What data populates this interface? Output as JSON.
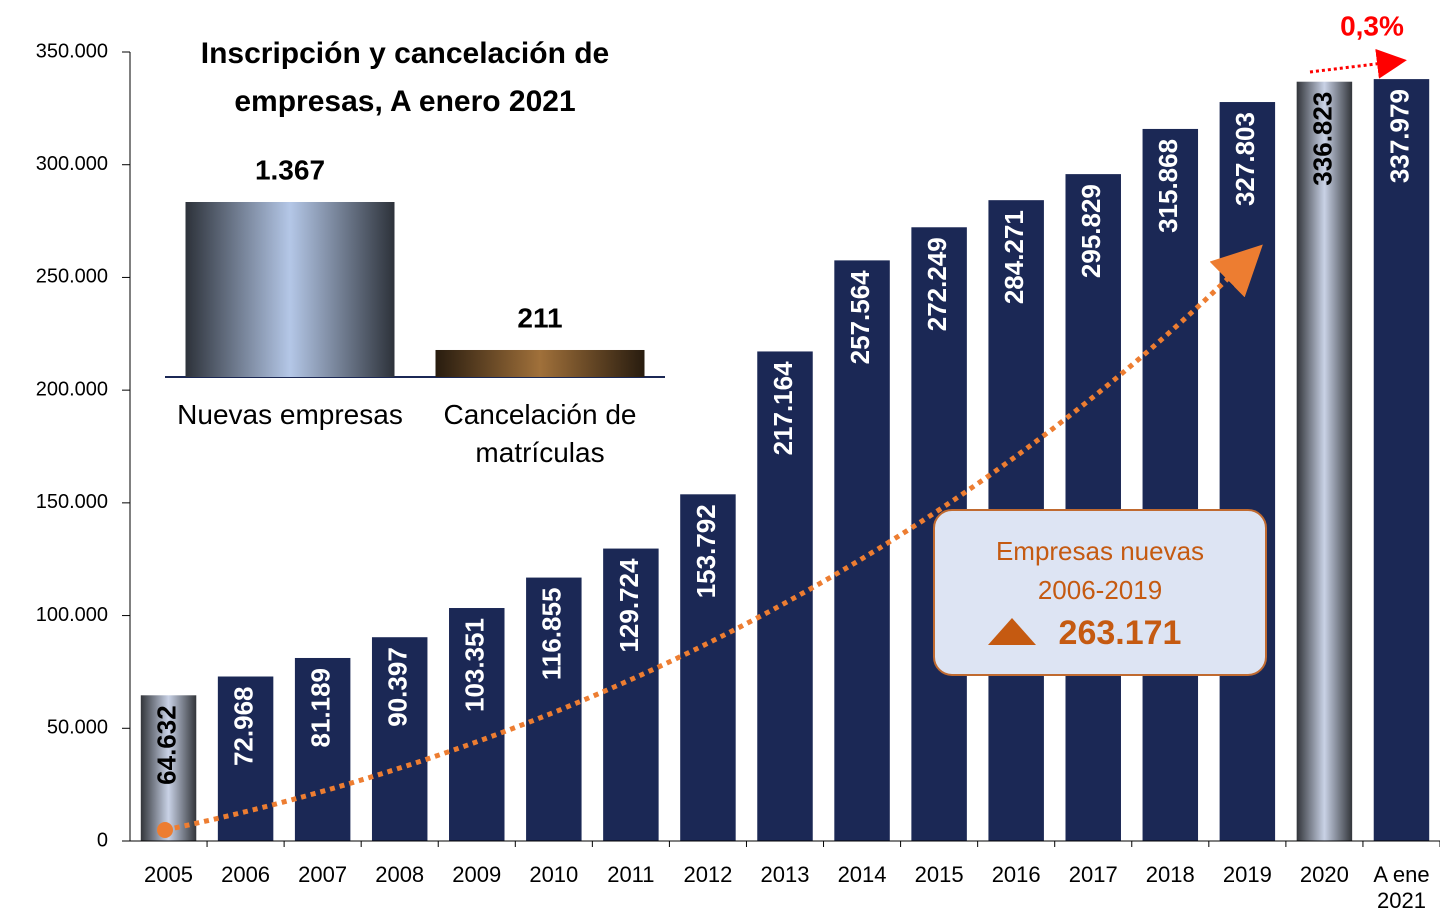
{
  "chart_data": {
    "type": "bar",
    "categories": [
      "2005",
      "2006",
      "2007",
      "2008",
      "2009",
      "2010",
      "2011",
      "2012",
      "2013",
      "2014",
      "2015",
      "2016",
      "2017",
      "2018",
      "2019",
      "2020",
      "A ene 2021"
    ],
    "values": [
      64632,
      72968,
      81189,
      90397,
      103351,
      116855,
      129724,
      153792,
      217164,
      257564,
      272249,
      284271,
      295829,
      315868,
      327803,
      336823,
      337979
    ],
    "value_labels": [
      "64.632",
      "72.968",
      "81.189",
      "90.397",
      "103.351",
      "116.855",
      "129.724",
      "153.792",
      "217.164",
      "257.564",
      "272.249",
      "284.271",
      "295.829",
      "315.868",
      "327.803",
      "336.823",
      "337.979"
    ],
    "colors": [
      "#c9d2e6",
      "#1b2855",
      "#1b2855",
      "#1b2855",
      "#1b2855",
      "#1b2855",
      "#1b2855",
      "#1b2855",
      "#1b2855",
      "#1b2855",
      "#1b2855",
      "#1b2855",
      "#1b2855",
      "#1b2855",
      "#1b2855",
      "#c9d2e6",
      "#1b2855"
    ],
    "ylim": [
      0,
      350000
    ],
    "yticks": [
      0,
      {
        "value": 50000,
        "label": "50.000"
      },
      {
        "value": 100000,
        "label": "100.000"
      },
      {
        "value": 150000,
        "label": "150.000"
      },
      {
        "value": 200000,
        "label": "200.000"
      },
      {
        "value": 250000,
        "label": "250.000"
      },
      {
        "value": 300000,
        "label": "300.000"
      },
      {
        "value": 350000,
        "label": "350.000"
      }
    ],
    "annotations": {
      "growth": "0,3%",
      "box_title": "Empresas nuevas",
      "box_period": "2006-2019",
      "box_value": "263.171"
    },
    "inset": {
      "type": "bar",
      "title": "Inscripción y cancelación de empresas, A enero 2021",
      "categories": [
        "Nuevas empresas",
        "Cancelación de matrículas"
      ],
      "values": [
        1367,
        211
      ],
      "value_labels": [
        "1.367",
        "211"
      ],
      "colors": [
        "#b4c7e7",
        "#a0703a"
      ]
    }
  }
}
